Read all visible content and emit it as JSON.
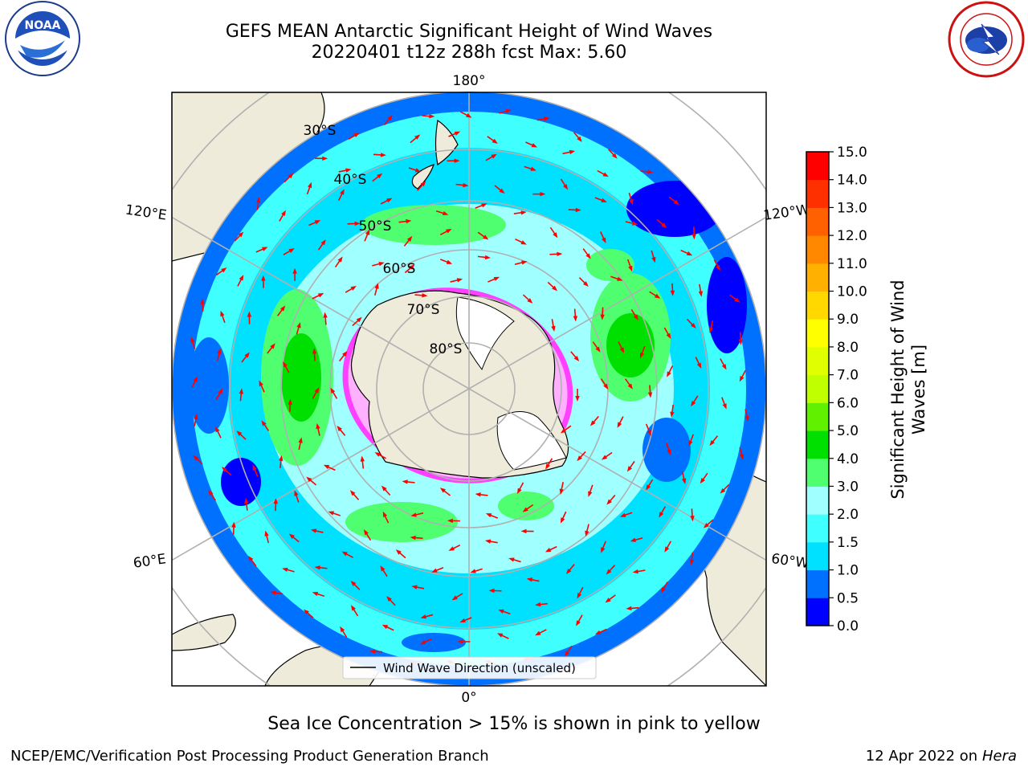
{
  "title": {
    "line1": "GEFS MEAN Antarctic Significant Height of Wind Waves",
    "line2": "20220401 t12z 288h fcst   Max: 5.60"
  },
  "logos": {
    "left_org": "NOAA",
    "right_org": "NATIONAL WEATHER SERVICE",
    "left_icon": "noaa-logo",
    "right_icon": "nws-logo"
  },
  "map": {
    "projection": "south-polar-stereographic",
    "longitude_labels": [
      "180°",
      "120°E",
      "120°W",
      "60°E",
      "60°W",
      "0°"
    ],
    "latitude_labels": [
      "30°S",
      "40°S",
      "50°S",
      "60°S",
      "70°S",
      "80°S"
    ],
    "legend_label": "Wind Wave Direction (unscaled)",
    "arrow_color": "#ff0000",
    "land_color": "#efebdb",
    "ice_shelf_color": "#ffffff"
  },
  "colorbar": {
    "label_line1": "Significant Height of Wind",
    "label_line2": "Waves [m]",
    "ticks": [
      "0.0",
      "0.5",
      "1.0",
      "1.5",
      "2.0",
      "3.0",
      "4.0",
      "5.0",
      "6.0",
      "7.0",
      "8.0",
      "9.0",
      "10.0",
      "11.0",
      "12.0",
      "13.0",
      "14.0",
      "15.0"
    ],
    "colors": [
      "#0000ff",
      "#0070ff",
      "#00e0ff",
      "#40ffff",
      "#a0ffff",
      "#50ff70",
      "#00e000",
      "#60f000",
      "#c0ff00",
      "#e0ff00",
      "#ffff00",
      "#ffd800",
      "#ffb000",
      "#ff8800",
      "#ff6000",
      "#ff3000",
      "#ff0000"
    ]
  },
  "caption": "Sea Ice Concentration > 15% is shown in pink to yellow",
  "footer": {
    "left": "NCEP/EMC/Verification Post Processing Product Generation Branch",
    "right_date": "12 Apr 2022 on",
    "right_host": "Hera"
  }
}
